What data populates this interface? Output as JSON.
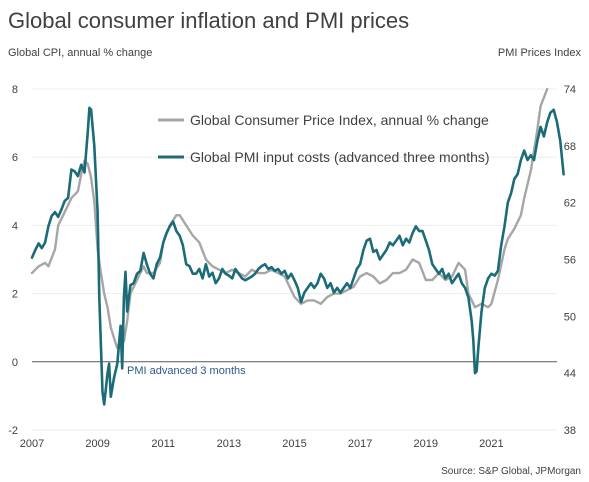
{
  "chart_data": {
    "type": "line",
    "title": "Global consumer inflation and PMI prices",
    "left_axis_label": "Global CPI, annual % change",
    "right_axis_label": "PMI Prices Index",
    "source": "Source: S&P Global, JPMorgan",
    "annotation": "PMI advanced 3 months",
    "left_axis": {
      "min": -2,
      "max": 8,
      "ticks": [
        -2,
        0,
        2,
        4,
        6,
        8
      ]
    },
    "right_axis": {
      "min": 38,
      "max": 74,
      "ticks": [
        38,
        44,
        50,
        56,
        62,
        68,
        74
      ]
    },
    "x_axis": {
      "min": 2007,
      "max": 2023,
      "ticks": [
        2007,
        2009,
        2011,
        2013,
        2015,
        2017,
        2019,
        2021
      ]
    },
    "legend_position": "top-center",
    "series": [
      {
        "name": "Global Consumer Price Index, annual % change",
        "axis": "left",
        "color": "#a6a6a6",
        "points": [
          [
            2007.0,
            2.6
          ],
          [
            2007.2,
            2.8
          ],
          [
            2007.4,
            2.9
          ],
          [
            2007.5,
            2.8
          ],
          [
            2007.7,
            3.3
          ],
          [
            2007.8,
            4.0
          ],
          [
            2007.9,
            4.2
          ],
          [
            2008.0,
            4.4
          ],
          [
            2008.2,
            4.8
          ],
          [
            2008.4,
            5.0
          ],
          [
            2008.5,
            5.5
          ],
          [
            2008.6,
            5.9
          ],
          [
            2008.7,
            5.8
          ],
          [
            2008.8,
            5.4
          ],
          [
            2008.9,
            4.7
          ],
          [
            2009.0,
            3.3
          ],
          [
            2009.1,
            2.6
          ],
          [
            2009.2,
            2.0
          ],
          [
            2009.3,
            1.6
          ],
          [
            2009.4,
            1.0
          ],
          [
            2009.5,
            0.7
          ],
          [
            2009.6,
            0.4
          ],
          [
            2009.7,
            0.6
          ],
          [
            2009.8,
            0.6
          ],
          [
            2009.9,
            1.2
          ],
          [
            2010.0,
            2.0
          ],
          [
            2010.2,
            2.4
          ],
          [
            2010.4,
            2.8
          ],
          [
            2010.5,
            2.6
          ],
          [
            2010.7,
            2.6
          ],
          [
            2010.9,
            2.9
          ],
          [
            2011.0,
            3.5
          ],
          [
            2011.2,
            4.0
          ],
          [
            2011.4,
            4.3
          ],
          [
            2011.5,
            4.3
          ],
          [
            2011.7,
            4.0
          ],
          [
            2011.9,
            3.7
          ],
          [
            2012.1,
            3.5
          ],
          [
            2012.3,
            3.0
          ],
          [
            2012.5,
            2.8
          ],
          [
            2012.7,
            2.7
          ],
          [
            2012.9,
            2.6
          ],
          [
            2013.1,
            2.7
          ],
          [
            2013.3,
            2.6
          ],
          [
            2013.5,
            2.5
          ],
          [
            2013.7,
            2.7
          ],
          [
            2013.9,
            2.6
          ],
          [
            2014.1,
            2.6
          ],
          [
            2014.3,
            2.7
          ],
          [
            2014.5,
            2.6
          ],
          [
            2014.7,
            2.5
          ],
          [
            2014.9,
            2.1
          ],
          [
            2015.0,
            1.9
          ],
          [
            2015.2,
            1.7
          ],
          [
            2015.4,
            1.8
          ],
          [
            2015.6,
            1.8
          ],
          [
            2015.8,
            1.7
          ],
          [
            2016.0,
            1.9
          ],
          [
            2016.2,
            2.0
          ],
          [
            2016.4,
            2.0
          ],
          [
            2016.6,
            2.1
          ],
          [
            2016.8,
            2.2
          ],
          [
            2017.0,
            2.5
          ],
          [
            2017.2,
            2.6
          ],
          [
            2017.4,
            2.5
          ],
          [
            2017.6,
            2.3
          ],
          [
            2017.8,
            2.4
          ],
          [
            2018.0,
            2.6
          ],
          [
            2018.2,
            2.6
          ],
          [
            2018.4,
            2.7
          ],
          [
            2018.6,
            3.0
          ],
          [
            2018.8,
            2.9
          ],
          [
            2019.0,
            2.4
          ],
          [
            2019.2,
            2.4
          ],
          [
            2019.4,
            2.6
          ],
          [
            2019.6,
            2.4
          ],
          [
            2019.8,
            2.5
          ],
          [
            2020.0,
            2.9
          ],
          [
            2020.2,
            2.7
          ],
          [
            2020.3,
            2.0
          ],
          [
            2020.5,
            1.6
          ],
          [
            2020.7,
            1.7
          ],
          [
            2020.9,
            1.6
          ],
          [
            2021.0,
            1.7
          ],
          [
            2021.2,
            2.4
          ],
          [
            2021.4,
            3.3
          ],
          [
            2021.5,
            3.6
          ],
          [
            2021.7,
            3.9
          ],
          [
            2021.9,
            4.3
          ],
          [
            2022.0,
            4.8
          ],
          [
            2022.2,
            5.6
          ],
          [
            2022.4,
            6.8
          ],
          [
            2022.5,
            7.5
          ],
          [
            2022.7,
            8.0
          ]
        ]
      },
      {
        "name": "Global PMI input costs (advanced three months)",
        "axis": "right",
        "color": "#1b6b78",
        "points": [
          [
            2007.0,
            56.2
          ],
          [
            2007.1,
            57.0
          ],
          [
            2007.2,
            57.7
          ],
          [
            2007.3,
            57.2
          ],
          [
            2007.4,
            57.8
          ],
          [
            2007.5,
            59.5
          ],
          [
            2007.6,
            60.6
          ],
          [
            2007.7,
            61.0
          ],
          [
            2007.8,
            60.5
          ],
          [
            2007.9,
            61.3
          ],
          [
            2008.0,
            62.2
          ],
          [
            2008.1,
            62.5
          ],
          [
            2008.2,
            65.5
          ],
          [
            2008.3,
            65.3
          ],
          [
            2008.4,
            64.8
          ],
          [
            2008.5,
            66.0
          ],
          [
            2008.6,
            65.2
          ],
          [
            2008.7,
            69.5
          ],
          [
            2008.75,
            72.0
          ],
          [
            2008.8,
            71.8
          ],
          [
            2008.9,
            68.0
          ],
          [
            2009.0,
            61.0
          ],
          [
            2009.05,
            52.0
          ],
          [
            2009.1,
            47.0
          ],
          [
            2009.15,
            42.0
          ],
          [
            2009.2,
            40.7
          ],
          [
            2009.3,
            44.0
          ],
          [
            2009.35,
            45.0
          ],
          [
            2009.4,
            41.5
          ],
          [
            2009.5,
            43.5
          ],
          [
            2009.6,
            45.0
          ],
          [
            2009.7,
            49.0
          ],
          [
            2009.75,
            44.5
          ],
          [
            2009.8,
            52.0
          ],
          [
            2009.85,
            54.7
          ],
          [
            2009.9,
            50.5
          ],
          [
            2010.0,
            53.3
          ],
          [
            2010.1,
            53.5
          ],
          [
            2010.2,
            54.5
          ],
          [
            2010.3,
            54.8
          ],
          [
            2010.4,
            56.7
          ],
          [
            2010.5,
            55.5
          ],
          [
            2010.6,
            54.5
          ],
          [
            2010.7,
            54.0
          ],
          [
            2010.8,
            55.5
          ],
          [
            2010.9,
            56.2
          ],
          [
            2011.0,
            57.8
          ],
          [
            2011.1,
            58.8
          ],
          [
            2011.2,
            59.5
          ],
          [
            2011.3,
            60.0
          ],
          [
            2011.4,
            59.0
          ],
          [
            2011.5,
            58.5
          ],
          [
            2011.6,
            57.5
          ],
          [
            2011.7,
            55.5
          ],
          [
            2011.8,
            55.3
          ],
          [
            2011.9,
            54.5
          ],
          [
            2012.0,
            54.5
          ],
          [
            2012.1,
            55.0
          ],
          [
            2012.2,
            54.0
          ],
          [
            2012.3,
            55.5
          ],
          [
            2012.4,
            54.2
          ],
          [
            2012.5,
            54.6
          ],
          [
            2012.6,
            53.5
          ],
          [
            2012.7,
            54.0
          ],
          [
            2012.8,
            55.0
          ],
          [
            2012.9,
            54.5
          ],
          [
            2013.0,
            54.3
          ],
          [
            2013.1,
            54.0
          ],
          [
            2013.2,
            55.0
          ],
          [
            2013.3,
            54.5
          ],
          [
            2013.4,
            54.0
          ],
          [
            2013.5,
            53.8
          ],
          [
            2013.6,
            54.0
          ],
          [
            2013.7,
            54.2
          ],
          [
            2013.8,
            54.5
          ],
          [
            2013.9,
            55.0
          ],
          [
            2014.0,
            55.3
          ],
          [
            2014.1,
            55.5
          ],
          [
            2014.2,
            55.0
          ],
          [
            2014.3,
            55.2
          ],
          [
            2014.4,
            54.8
          ],
          [
            2014.5,
            55.0
          ],
          [
            2014.6,
            54.5
          ],
          [
            2014.7,
            54.8
          ],
          [
            2014.8,
            54.0
          ],
          [
            2014.9,
            54.5
          ],
          [
            2015.0,
            53.8
          ],
          [
            2015.1,
            53.0
          ],
          [
            2015.2,
            51.5
          ],
          [
            2015.3,
            52.5
          ],
          [
            2015.4,
            53.0
          ],
          [
            2015.5,
            53.5
          ],
          [
            2015.6,
            53.0
          ],
          [
            2015.7,
            53.5
          ],
          [
            2015.8,
            54.5
          ],
          [
            2015.9,
            54.0
          ],
          [
            2016.0,
            53.0
          ],
          [
            2016.1,
            53.5
          ],
          [
            2016.2,
            52.5
          ],
          [
            2016.3,
            53.0
          ],
          [
            2016.4,
            52.5
          ],
          [
            2016.5,
            53.0
          ],
          [
            2016.6,
            53.5
          ],
          [
            2016.7,
            53.0
          ],
          [
            2016.8,
            54.0
          ],
          [
            2016.9,
            55.0
          ],
          [
            2017.0,
            55.5
          ],
          [
            2017.1,
            57.0
          ],
          [
            2017.2,
            58.0
          ],
          [
            2017.3,
            58.2
          ],
          [
            2017.4,
            56.8
          ],
          [
            2017.5,
            57.0
          ],
          [
            2017.6,
            56.0
          ],
          [
            2017.7,
            56.5
          ],
          [
            2017.8,
            57.0
          ],
          [
            2017.9,
            57.8
          ],
          [
            2018.0,
            57.5
          ],
          [
            2018.1,
            58.0
          ],
          [
            2018.2,
            58.5
          ],
          [
            2018.3,
            57.5
          ],
          [
            2018.4,
            58.2
          ],
          [
            2018.5,
            57.8
          ],
          [
            2018.6,
            58.8
          ],
          [
            2018.7,
            59.5
          ],
          [
            2018.8,
            59.0
          ],
          [
            2018.9,
            59.0
          ],
          [
            2019.0,
            58.0
          ],
          [
            2019.1,
            57.0
          ],
          [
            2019.2,
            55.5
          ],
          [
            2019.3,
            55.0
          ],
          [
            2019.4,
            54.5
          ],
          [
            2019.5,
            55.0
          ],
          [
            2019.6,
            54.0
          ],
          [
            2019.7,
            54.5
          ],
          [
            2019.8,
            53.5
          ],
          [
            2019.9,
            54.0
          ],
          [
            2020.0,
            54.5
          ],
          [
            2020.1,
            53.5
          ],
          [
            2020.2,
            53.0
          ],
          [
            2020.3,
            52.0
          ],
          [
            2020.4,
            49.5
          ],
          [
            2020.45,
            47.5
          ],
          [
            2020.5,
            44.0
          ],
          [
            2020.55,
            44.2
          ],
          [
            2020.6,
            46.5
          ],
          [
            2020.7,
            50.5
          ],
          [
            2020.8,
            53.0
          ],
          [
            2020.9,
            54.0
          ],
          [
            2021.0,
            54.5
          ],
          [
            2021.1,
            54.3
          ],
          [
            2021.2,
            54.8
          ],
          [
            2021.3,
            57.5
          ],
          [
            2021.4,
            59.5
          ],
          [
            2021.5,
            62.0
          ],
          [
            2021.6,
            63.0
          ],
          [
            2021.7,
            64.5
          ],
          [
            2021.8,
            65.0
          ],
          [
            2021.9,
            66.5
          ],
          [
            2022.0,
            67.5
          ],
          [
            2022.1,
            66.5
          ],
          [
            2022.2,
            67.0
          ],
          [
            2022.3,
            66.5
          ],
          [
            2022.4,
            68.5
          ],
          [
            2022.5,
            70.0
          ],
          [
            2022.6,
            69.0
          ],
          [
            2022.7,
            70.5
          ],
          [
            2022.8,
            71.5
          ],
          [
            2022.9,
            71.8
          ],
          [
            2023.0,
            70.5
          ],
          [
            2023.1,
            68.5
          ],
          [
            2023.2,
            65.0
          ]
        ]
      }
    ]
  }
}
